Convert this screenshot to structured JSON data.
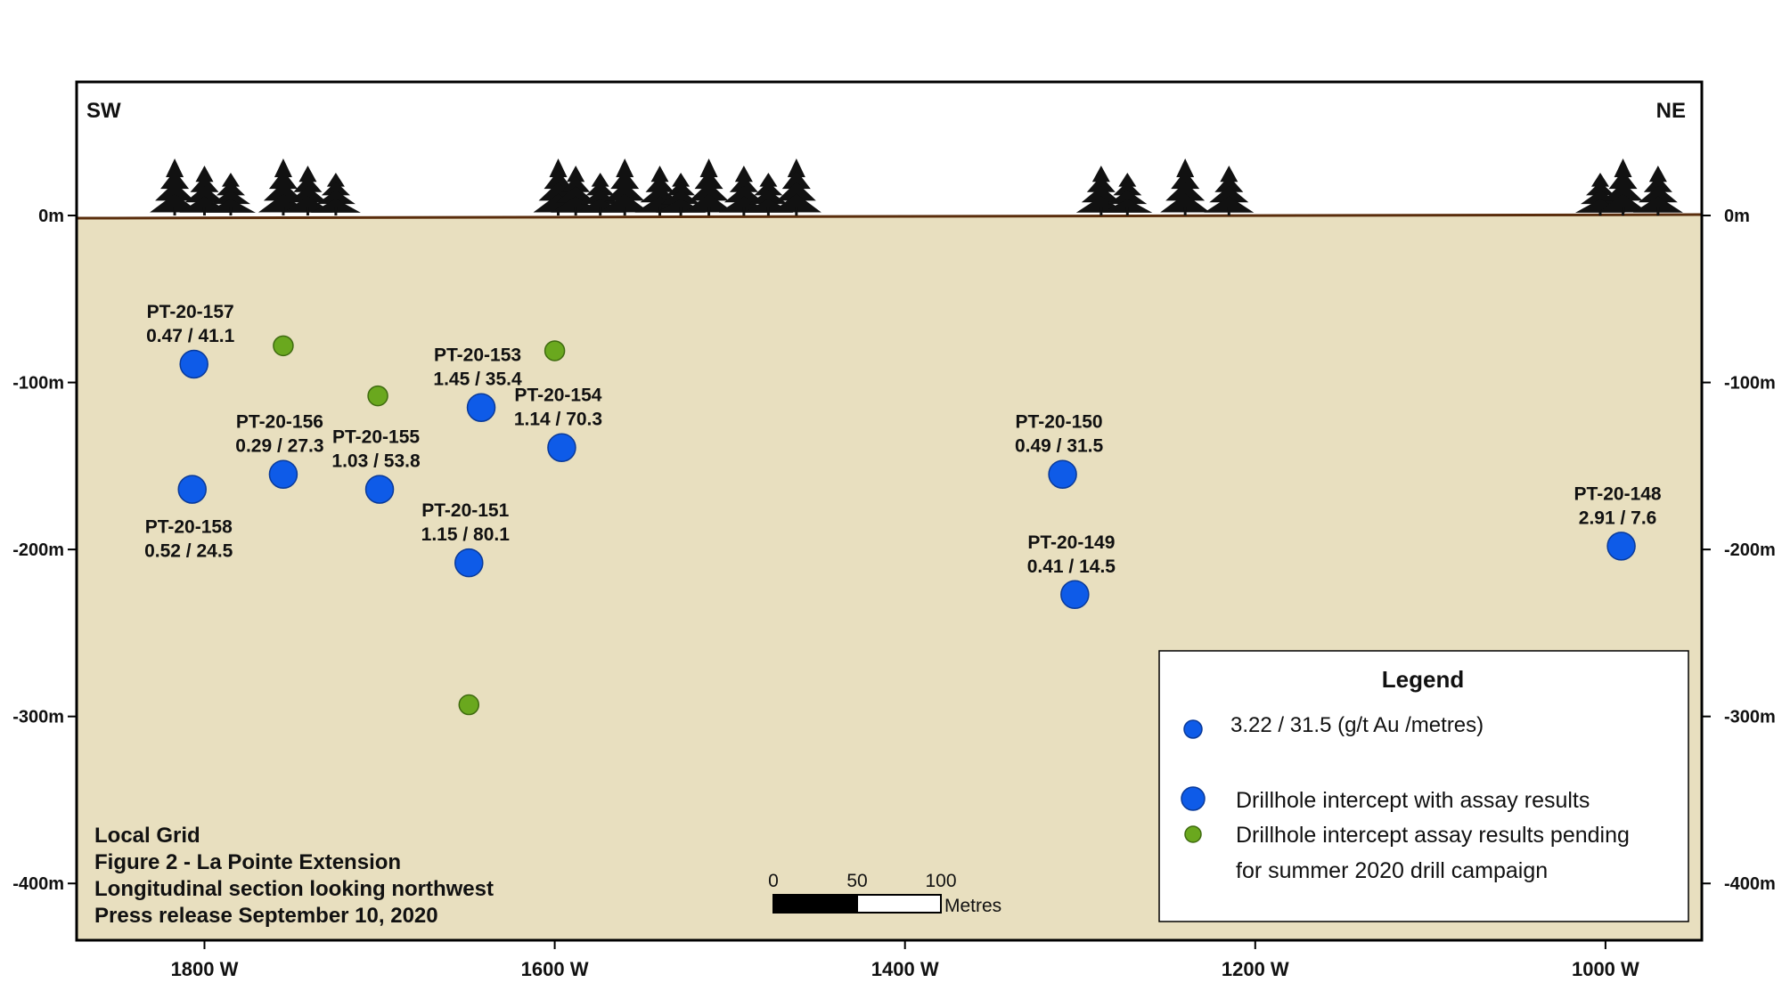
{
  "figure": {
    "orientation_left": "SW",
    "orientation_right": "NE",
    "info_lines": [
      "Local Grid",
      "Figure 2 - La Pointe Extension",
      "Longitudinal section looking northwest",
      "Press release September 10, 2020"
    ],
    "colors": {
      "ground": "#e8dfbf",
      "surface_line": "#5a2d0c",
      "assay": "#0e5be8",
      "pending": "#6aa81e",
      "tree": "#111111"
    }
  },
  "chart_data": {
    "type": "scatter",
    "x_unit": "grid easting (W)",
    "y_unit": "elevation (m)",
    "xlim": [
      1873,
      945
    ],
    "ylim": [
      -434,
      80
    ],
    "x_ticks": [
      1800,
      1600,
      1400,
      1200,
      1000
    ],
    "x_tick_labels": [
      "1800 W",
      "1600 W",
      "1400 W",
      "1200 W",
      "1000 W"
    ],
    "y_ticks": [
      0,
      -100,
      -200,
      -300,
      -400
    ],
    "y_tick_labels_left": [
      "0m",
      "-100m",
      "-200m",
      "-300m",
      "-400m"
    ],
    "y_tick_labels_right": [
      "0m",
      "-100m",
      "-200m",
      "-300m",
      "-400m"
    ],
    "series": [
      {
        "name": "Drillhole intercept with assay results",
        "points": [
          {
            "hole": "PT-20-157",
            "value": "0.47 / 41.1",
            "x": 1806,
            "y": -89,
            "label_pos": "above"
          },
          {
            "hole": "PT-20-158",
            "value": "0.52 / 24.5",
            "x": 1807,
            "y": -164,
            "label_pos": "below"
          },
          {
            "hole": "PT-20-156",
            "value": "0.29 / 27.3",
            "x": 1755,
            "y": -155,
            "label_pos": "above"
          },
          {
            "hole": "PT-20-155",
            "value": "1.03 / 53.8",
            "x": 1700,
            "y": -164,
            "label_pos": "above"
          },
          {
            "hole": "PT-20-153",
            "value": "1.45 / 35.4",
            "x": 1642,
            "y": -115,
            "label_pos": "above"
          },
          {
            "hole": "PT-20-154",
            "value": "1.14 / 70.3",
            "x": 1596,
            "y": -139,
            "label_pos": "above"
          },
          {
            "hole": "PT-20-151",
            "value": "1.15 / 80.1",
            "x": 1649,
            "y": -208,
            "label_pos": "above"
          },
          {
            "hole": "PT-20-150",
            "value": "0.49 / 31.5",
            "x": 1310,
            "y": -155,
            "label_pos": "above"
          },
          {
            "hole": "PT-20-149",
            "value": "0.41  / 14.5",
            "x": 1303,
            "y": -227,
            "label_pos": "above"
          },
          {
            "hole": "PT-20-148",
            "value": "2.91  / 7.6",
            "x": 991,
            "y": -198,
            "label_pos": "above"
          }
        ]
      },
      {
        "name": "Drillhole intercept assay results pending",
        "points": [
          {
            "x": 1755,
            "y": -78
          },
          {
            "x": 1701,
            "y": -108
          },
          {
            "x": 1600,
            "y": -81
          },
          {
            "x": 1649,
            "y": -293
          }
        ]
      }
    ],
    "trees": [
      1817,
      1800,
      1785,
      1755,
      1741,
      1725,
      1598,
      1588,
      1574,
      1560,
      1540,
      1528,
      1512,
      1492,
      1478,
      1462,
      1288,
      1273,
      1240,
      1215,
      1003,
      990,
      970
    ],
    "legend_position": "bottom-right"
  },
  "legend": {
    "title": "Legend",
    "sample": "3.22 / 31.5 (g/t Au /metres)",
    "assay": "Drillhole intercept with assay results",
    "pending_line1": "Drillhole intercept assay results pending",
    "pending_line2": "for summer 2020 drill campaign"
  },
  "scalebar": {
    "ticks": [
      "0",
      "50",
      "100"
    ],
    "metres_label": "Metres",
    "length_m": 100
  }
}
